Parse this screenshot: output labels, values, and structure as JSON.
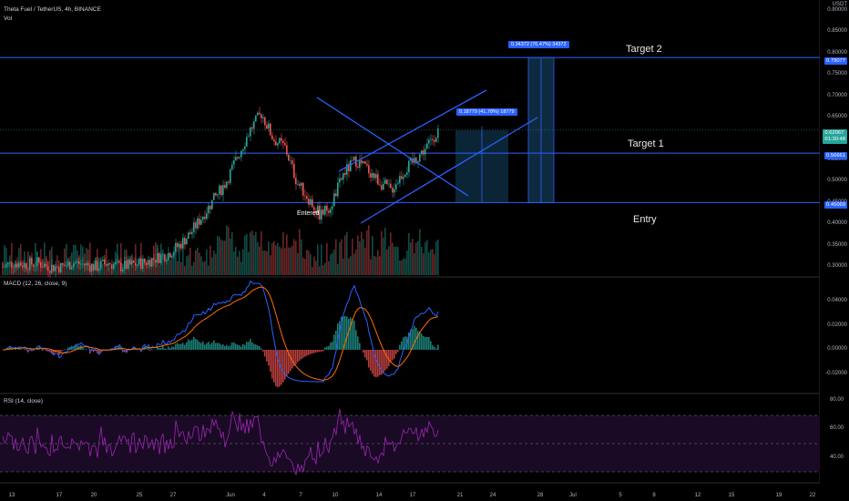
{
  "header": {
    "symbol": "Theta Fuel / TetherUS, 4h, BINANCE",
    "vol": "Vol",
    "currency": "USDT"
  },
  "panes": {
    "macd_label": "MACD (12, 26, close, 9)",
    "rsi_label": "RSI (14, close)"
  },
  "annotations": {
    "target2": "Target 2",
    "target1": "Target 1",
    "entry": "Entry",
    "entered": "Entered",
    "box1": "0.18779 (41.78%) 18779",
    "box2": "0.34372 (76.47%) 34372"
  },
  "levels": {
    "target2": "0.79077",
    "target1": "0.56661",
    "entry": "0.45069"
  },
  "current": {
    "price": "0.62067",
    "time": "01:30:48"
  },
  "price_axis": [
    "0.90000",
    "0.85000",
    "0.80000",
    "0.75000",
    "0.70000",
    "0.65000",
    "0.60000",
    "0.55000",
    "0.50000",
    "0.45000",
    "0.40000",
    "0.35000",
    "0.30000"
  ],
  "macd_axis": [
    "0.04000",
    "0.02000",
    "0.00000",
    "-0.02000"
  ],
  "rsi_axis": [
    "80.00",
    "60.00",
    "40.00"
  ],
  "x_axis": [
    "13",
    "17",
    "20",
    "25",
    "27",
    "Jun",
    "4",
    "7",
    "10",
    "14",
    "17",
    "21",
    "24",
    "28",
    "Jul",
    "5",
    "8",
    "12",
    "15",
    "19",
    "22"
  ],
  "colors": {
    "up": "#26a69a",
    "down": "#ef5350",
    "line": "#2962ff",
    "rsi": "#9c27b0",
    "signal": "#ff6d00"
  },
  "chart_data": {
    "type": "candlestick",
    "title": "Theta Fuel / TetherUS, 4h, BINANCE",
    "close_path": [
      0.3,
      0.31,
      0.305,
      0.31,
      0.3,
      0.3,
      0.31,
      0.305,
      0.3,
      0.31,
      0.3,
      0.305,
      0.31,
      0.32,
      0.33,
      0.35,
      0.38,
      0.42,
      0.46,
      0.5,
      0.56,
      0.62,
      0.66,
      0.6,
      0.58,
      0.5,
      0.46,
      0.42,
      0.45,
      0.52,
      0.55,
      0.53,
      0.5,
      0.48,
      0.52,
      0.55,
      0.58,
      0.62
    ],
    "horizontal_levels": [
      0.79077,
      0.56661,
      0.45069
    ],
    "last_price": 0.62067
  }
}
